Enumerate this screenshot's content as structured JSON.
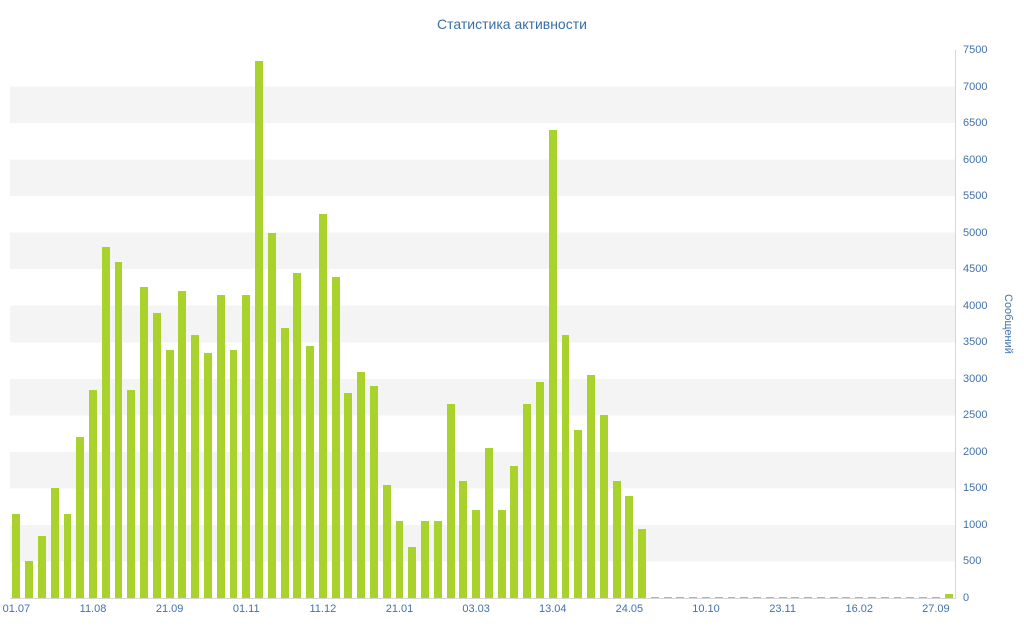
{
  "title": "Статистика активности",
  "chart_data": {
    "type": "bar",
    "title": "Статистика активности",
    "ylabel": "Сообщений",
    "xlabel": "",
    "ylim": [
      0,
      7500
    ],
    "ytick_step": 500,
    "grid": "horizontal-bands",
    "legend": "none",
    "bar_color": "#a9d32c",
    "band_color": "#f4f4f4",
    "axis_text_color": "#4272a8",
    "title_color": "#3a6ea5",
    "y_tick_labels": [
      "0",
      "500",
      "1000",
      "1500",
      "2000",
      "2500",
      "3000",
      "3500",
      "4000",
      "4500",
      "5000",
      "5500",
      "6000",
      "6500",
      "7000",
      "7500"
    ],
    "x_tick_labels": [
      "01.07",
      "11.08",
      "21.09",
      "01.11",
      "11.12",
      "21.01",
      "03.03",
      "13.04",
      "24.05",
      "10.10",
      "23.11",
      "16.02",
      "27.09"
    ],
    "x_tick_indices": [
      0,
      6,
      12,
      18,
      24,
      30,
      36,
      42,
      48,
      54,
      60,
      66,
      72
    ],
    "values": [
      1150,
      500,
      850,
      1500,
      1150,
      2200,
      2850,
      4800,
      4600,
      2850,
      4250,
      3900,
      3400,
      4200,
      3600,
      3350,
      4150,
      3400,
      4150,
      7350,
      5000,
      3700,
      4450,
      3450,
      5250,
      4400,
      2800,
      3100,
      2900,
      1550,
      1050,
      700,
      1050,
      1050,
      2650,
      1600,
      1200,
      2050,
      1200,
      1800,
      2650,
      2950,
      6400,
      3600,
      2300,
      3050,
      2500,
      1600,
      1400,
      950,
      20,
      15,
      10,
      15,
      20,
      10,
      15,
      10,
      20,
      15,
      10,
      15,
      10,
      20,
      15,
      10,
      15,
      20,
      10,
      15,
      10,
      15,
      20,
      60
    ]
  }
}
